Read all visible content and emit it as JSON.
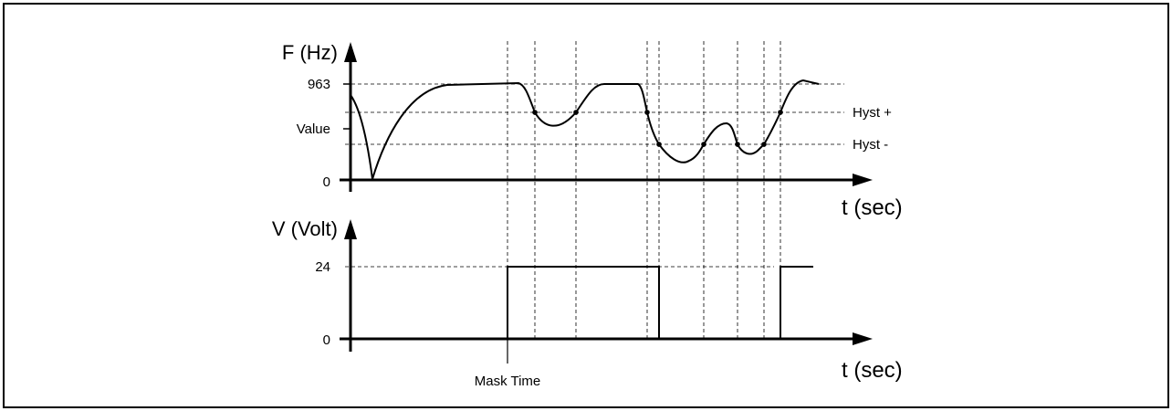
{
  "diagram": {
    "top_chart": {
      "y_axis_title": "F (Hz)",
      "x_axis_title": "t (sec)",
      "y_ticks": [
        "963",
        "Value",
        "0"
      ],
      "thresholds": [
        "Hyst +",
        "Hyst -"
      ]
    },
    "bottom_chart": {
      "y_axis_title": "V (Volt)",
      "x_axis_title": "t (sec)",
      "y_ticks": [
        "24",
        "0"
      ],
      "annotation": "Mask Time"
    },
    "colors": {
      "line": "#000000",
      "frame": "#000000",
      "background": "#ffffff"
    }
  }
}
